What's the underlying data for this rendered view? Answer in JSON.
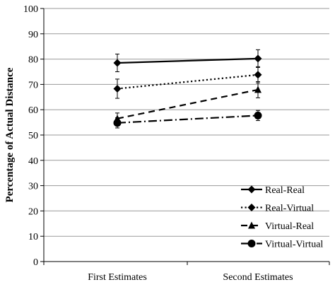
{
  "chart_data": {
    "type": "line",
    "title": "",
    "xlabel": "",
    "ylabel": "Percentage of Actual Distance",
    "ylim": [
      0,
      100
    ],
    "yticks": [
      0,
      10,
      20,
      30,
      40,
      50,
      60,
      70,
      80,
      90,
      100
    ],
    "grid": true,
    "legend_position": "bottom-right",
    "categories": [
      "First Estimates",
      "Second Estimates"
    ],
    "series": [
      {
        "name": "Real-Real",
        "values": [
          78.5,
          80.2
        ],
        "errors": [
          3.5,
          3.5
        ],
        "marker": "diamond",
        "dash": "solid"
      },
      {
        "name": "Real-Virtual",
        "values": [
          68.3,
          73.8
        ],
        "errors": [
          3.8,
          3.2
        ],
        "marker": "diamond",
        "dash": "dotted"
      },
      {
        "name": "Virtual-Real",
        "values": [
          56.5,
          67.9
        ],
        "errors": [
          2.2,
          3.2
        ],
        "marker": "triangle",
        "dash": "dashed"
      },
      {
        "name": "Virtual-Virtual",
        "values": [
          54.8,
          57.7
        ],
        "errors": [
          2.0,
          2.0
        ],
        "marker": "circle",
        "dash": "dashdot"
      }
    ]
  }
}
